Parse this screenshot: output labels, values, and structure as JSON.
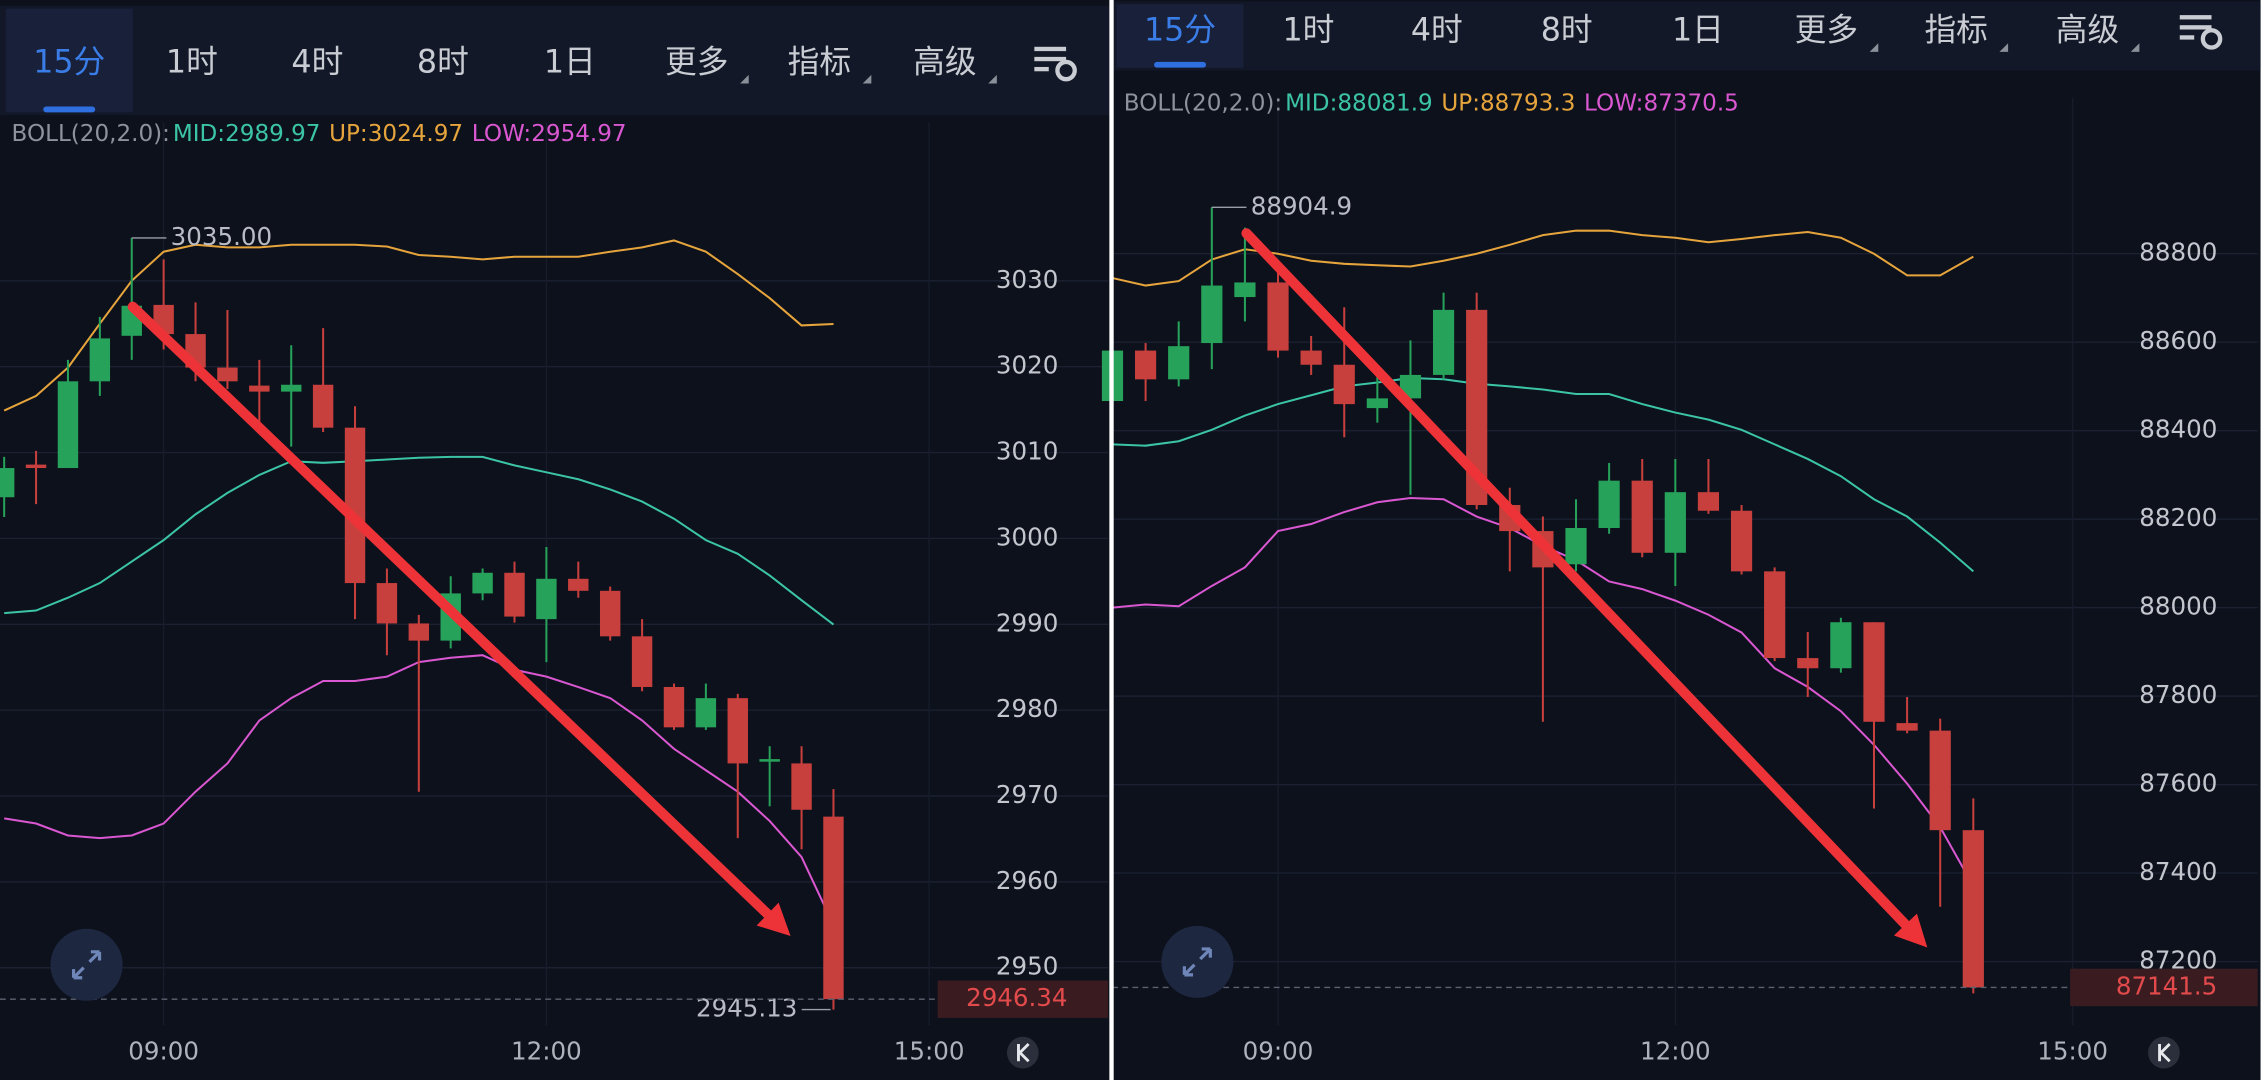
{
  "chart_data": [
    {
      "type": "candlestick",
      "tabs": [
        "15分",
        "1时",
        "4时",
        "8时",
        "1日",
        "更多",
        "指标",
        "高级"
      ],
      "active_tab": 0,
      "indicator": "BOLL(20,2.0):",
      "x": [
        7.75,
        8,
        8.25,
        8.5,
        8.75,
        9,
        9.25,
        9.5,
        9.75,
        10,
        10.25,
        10.5,
        10.75,
        11,
        11.25,
        11.5,
        11.75,
        12,
        12.25,
        12.5,
        12.75,
        13,
        13.25,
        13.5,
        13.75,
        14,
        14.25
      ],
      "xlim": [
        7.74,
        15.18
      ],
      "xticks": [
        {
          "value": 9,
          "label": "09:00"
        },
        {
          "value": 12,
          "label": "12:00"
        },
        {
          "value": 15,
          "label": "15:00"
        }
      ],
      "ylim": [
        2943.3,
        3045.1
      ],
      "yticks": [
        2950,
        2960,
        2970,
        2980,
        2990,
        3000,
        3010,
        3020,
        3030
      ],
      "grid": true,
      "up_color": "#26a25a",
      "down_color": "#c8403d",
      "open": [
        3004.8,
        3008.6,
        3008.2,
        3018.3,
        3023.6,
        3027.2,
        3023.8,
        3019.9,
        3017.8,
        3017.1,
        3017.9,
        3012.9,
        2994.8,
        2990.1,
        2988.1,
        2993.6,
        2996.0,
        2990.6,
        2995.3,
        2993.9,
        2988.6,
        2982.7,
        2978.0,
        2981.4,
        2974.0,
        2973.8,
        2967.6
      ],
      "high": [
        3009.5,
        3010.2,
        3020.8,
        3025.8,
        3035,
        3032.5,
        3027.5,
        3026.6,
        3020.8,
        3022.5,
        3024.5,
        3015.4,
        2996.5,
        2991.1,
        2995.6,
        2996.5,
        2997.3,
        2999.0,
        2997.3,
        2994.4,
        2990.6,
        2983.1,
        2983.1,
        2981.9,
        2975.8,
        2975.8,
        2970.8
      ],
      "low": [
        3002.5,
        3004.0,
        3008.2,
        3016.6,
        3020.8,
        3022.0,
        3018.3,
        3017.4,
        3012.4,
        3010.7,
        3012.4,
        2990.6,
        2986.4,
        2970.5,
        2987.2,
        2992.8,
        2990.2,
        2985.6,
        2993.1,
        2988.1,
        2982.2,
        2977.7,
        2977.7,
        2965.1,
        2968.8,
        2963.8,
        2945.13
      ],
      "close": [
        3008.2,
        3008.2,
        3018.3,
        3023.3,
        3027.1,
        3023.8,
        3019.9,
        3018.3,
        3017.1,
        3017.9,
        3012.9,
        2994.8,
        2990.1,
        2988.1,
        2993.6,
        2996.0,
        2990.9,
        2995.3,
        2993.9,
        2988.6,
        2982.7,
        2978.0,
        2981.4,
        2973.8,
        2974.3,
        2968.4,
        2946.34
      ],
      "bands": [
        {
          "name": "MID:",
          "color": "#3bc4a6",
          "values": [
            2991.3,
            2991.6,
            2993.1,
            2994.8,
            2997.3,
            2999.8,
            3002.8,
            3005.3,
            3007.4,
            3009.0,
            3008.8,
            3009.0,
            3009.2,
            3009.4,
            3009.5,
            3009.5,
            3008.5,
            3007.7,
            3006.9,
            3005.7,
            3004.3,
            3002.3,
            2999.8,
            2998.2,
            2995.7,
            2992.8,
            2989.97
          ]
        },
        {
          "name": "UP:",
          "color": "#e6a43c",
          "values": [
            3014.9,
            3016.6,
            3019.9,
            3025.0,
            3030.0,
            3033.4,
            3034.2,
            3033.9,
            3033.9,
            3034.2,
            3034.2,
            3034.2,
            3034.0,
            3033.0,
            3032.8,
            3032.5,
            3032.8,
            3032.8,
            3032.8,
            3033.4,
            3033.9,
            3034.7,
            3033.4,
            3030.8,
            3028.0,
            3024.8,
            3024.97
          ]
        },
        {
          "name": "LOW:",
          "color": "#d957d0",
          "values": [
            2967.4,
            2966.8,
            2965.4,
            2965.1,
            2965.4,
            2966.8,
            2970.5,
            2973.8,
            2978.8,
            2981.4,
            2983.4,
            2983.4,
            2983.9,
            2985.6,
            2986.1,
            2986.4,
            2984.7,
            2983.9,
            2982.7,
            2981.4,
            2978.8,
            2975.5,
            2973.0,
            2970.5,
            2967.1,
            2962.9,
            2954.97
          ]
        }
      ],
      "high_label": {
        "value": 3035,
        "label": "3035.00"
      },
      "low_label": {
        "value": 2945.13,
        "label": "2945.13"
      }
    },
    {
      "type": "candlestick",
      "tabs": [
        "15分",
        "1时",
        "4时",
        "8时",
        "1日",
        "更多",
        "指标",
        "高级"
      ],
      "active_tab": 0,
      "indicator": "BOLL(20,2.0):",
      "x": [
        7.75,
        8,
        8.25,
        8.5,
        8.75,
        9,
        9.25,
        9.5,
        9.75,
        10,
        10.25,
        10.5,
        10.75,
        11,
        11.25,
        11.5,
        11.75,
        12,
        12.25,
        12.5,
        12.75,
        13,
        13.25,
        13.5,
        13.75,
        14,
        14.25
      ],
      "xlim": [
        7.77,
        15.09
      ],
      "xticks": [
        {
          "value": 9,
          "label": "09:00"
        },
        {
          "value": 12,
          "label": "12:00"
        },
        {
          "value": 15,
          "label": "15:00"
        }
      ],
      "ylim": [
        87056,
        89087
      ],
      "yticks": [
        87200,
        87400,
        87600,
        87800,
        88000,
        88200,
        88400,
        88600,
        88800
      ],
      "grid": true,
      "up_color": "#26a25a",
      "down_color": "#c8403d",
      "open": [
        88467,
        88581,
        88516,
        88598,
        88702,
        88735,
        88581,
        88549,
        88451,
        88473,
        88526,
        88673,
        88232,
        88173,
        88098,
        88180,
        88287,
        88124,
        88261,
        88219,
        88082,
        87886,
        87863,
        87967,
        87739,
        87722,
        87497
      ],
      "high": [
        88598,
        88598,
        88647,
        88904.9,
        88859,
        88767,
        88614,
        88679,
        88532,
        88604,
        88712,
        88712,
        88271,
        88206,
        88245,
        88327,
        88336,
        88336,
        88336,
        88232,
        88091,
        87945,
        87977,
        87967,
        87798,
        87749,
        87569
      ],
      "low": [
        88451,
        88467,
        88500,
        88539,
        88647,
        88565,
        88526,
        88385,
        88418,
        88255,
        88516,
        88222,
        88082,
        87742,
        88082,
        88167,
        88114,
        88049,
        88212,
        88075,
        87879,
        87798,
        87853,
        87546,
        87716,
        87324,
        87128
      ],
      "close": [
        88581,
        88516,
        88591,
        88728,
        88735,
        88581,
        88549,
        88460,
        88473,
        88526,
        88673,
        88232,
        88173,
        88091,
        88180,
        88287,
        88124,
        88261,
        88219,
        88082,
        87886,
        87863,
        87967,
        87742,
        87722,
        87497,
        87141.5
      ],
      "bands": [
        {
          "name": "MID:",
          "color": "#3bc4a6",
          "values": [
            88369,
            88366,
            88376,
            88402,
            88434,
            88460,
            88480,
            88500,
            88509,
            88519,
            88516,
            88506,
            88500,
            88493,
            88483,
            88483,
            88460,
            88441,
            88425,
            88402,
            88369,
            88336,
            88297,
            88245,
            88206,
            88147,
            88081.9
          ]
        },
        {
          "name": "UP:",
          "color": "#e6a43c",
          "values": [
            88745,
            88728,
            88738,
            88787,
            88810,
            88800,
            88784,
            88777,
            88774,
            88771,
            88784,
            88800,
            88820,
            88842,
            88852,
            88852,
            88842,
            88836,
            88826,
            88833,
            88842,
            88849,
            88836,
            88800,
            88751,
            88751,
            88793.3
          ]
        },
        {
          "name": "LOW:",
          "color": "#d957d0",
          "values": [
            88000,
            88007,
            88003,
            88049,
            88091,
            88173,
            88189,
            88216,
            88238,
            88248,
            88245,
            88206,
            88180,
            88140,
            88107,
            88059,
            88042,
            88016,
            87984,
            87944,
            87863,
            87821,
            87766,
            87690,
            87602,
            87504,
            87370.5
          ]
        }
      ],
      "high_label": {
        "value": 88904.9,
        "label": "88904.9"
      }
    }
  ]
}
